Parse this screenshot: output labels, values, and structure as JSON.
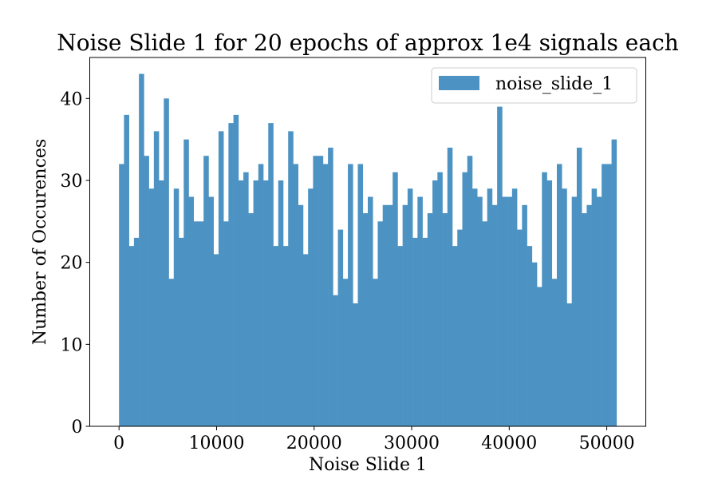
{
  "chart_data": {
    "type": "bar",
    "title": "Noise Slide 1 for 20 epochs of approx 1e4 signals each",
    "xlabel": "Noise Slide 1",
    "ylabel": "Number of Occurences",
    "xlim": [
      -3000,
      54000
    ],
    "ylim": [
      0,
      45
    ],
    "xticks": [
      0,
      10000,
      20000,
      30000,
      40000,
      50000
    ],
    "yticks": [
      0,
      10,
      20,
      30,
      40
    ],
    "bin_start": 0,
    "bin_width": 510,
    "bar_color": "#4c93c3",
    "legend": {
      "position": "upper right"
    },
    "series": [
      {
        "name": "noise_slide_1",
        "values": [
          32,
          38,
          22,
          23,
          43,
          33,
          29,
          36,
          30,
          40,
          18,
          29,
          23,
          35,
          28,
          25,
          25,
          33,
          28,
          21,
          36,
          25,
          37,
          38,
          30,
          31,
          26,
          30,
          32,
          30,
          37,
          22,
          30,
          22,
          36,
          32,
          27,
          21,
          29,
          33,
          33,
          32,
          34,
          16,
          24,
          18,
          32,
          15,
          32,
          26,
          28,
          18,
          25,
          27,
          27,
          31,
          22,
          27,
          29,
          23,
          28,
          23,
          26,
          30,
          31,
          26,
          34,
          22,
          24,
          31,
          33,
          29,
          28,
          25,
          29,
          27,
          39,
          28,
          28,
          29,
          24,
          27,
          22,
          20,
          17,
          31,
          30,
          18,
          32,
          29,
          15,
          28,
          34,
          26,
          27,
          29,
          28,
          32,
          32,
          35
        ]
      }
    ]
  }
}
